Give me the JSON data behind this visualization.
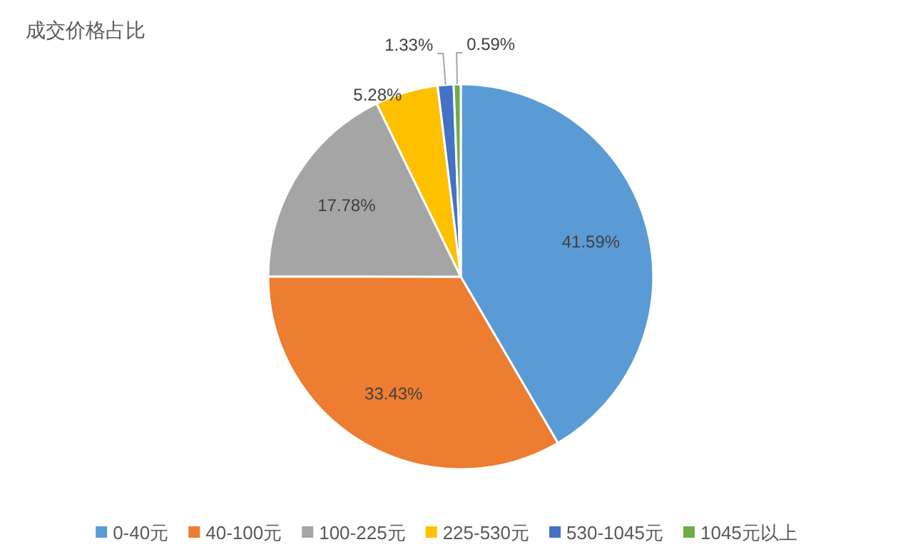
{
  "chart_data": {
    "type": "pie",
    "title": "成交价格占比",
    "categories": [
      "0-40元",
      "40-100元",
      "100-225元",
      "225-530元",
      "530-1045元",
      "1045元以上"
    ],
    "values": [
      41.59,
      33.43,
      17.78,
      5.28,
      1.33,
      0.59
    ],
    "colors": [
      "#5b9bd5",
      "#ed7d31",
      "#a5a5a5",
      "#ffc000",
      "#4472c4",
      "#70ad47"
    ],
    "value_labels": [
      "41.59%",
      "33.43%",
      "17.78%",
      "5.28%",
      "1.33%",
      "0.59%"
    ],
    "legend": "bottom"
  }
}
